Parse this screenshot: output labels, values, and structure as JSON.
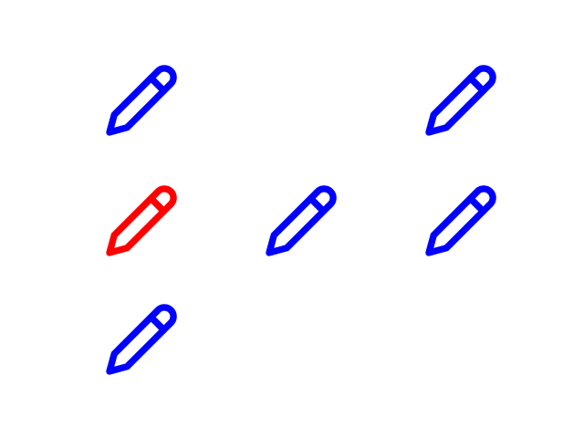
{
  "colors": {
    "default": "#0000ff",
    "highlight": "#ff0000",
    "background": "#ffffff"
  },
  "grid": {
    "rows": 3,
    "cols": 3
  },
  "icons": [
    {
      "icon": "pencil-icon",
      "row": 0,
      "col": 0,
      "color": "#0000ff",
      "state": "default"
    },
    {
      "icon": "pencil-icon",
      "row": 0,
      "col": 2,
      "color": "#0000ff",
      "state": "default"
    },
    {
      "icon": "pencil-icon",
      "row": 1,
      "col": 0,
      "color": "#ff0000",
      "state": "highlighted"
    },
    {
      "icon": "pencil-icon",
      "row": 1,
      "col": 1,
      "color": "#0000ff",
      "state": "default"
    },
    {
      "icon": "pencil-icon",
      "row": 1,
      "col": 2,
      "color": "#0000ff",
      "state": "default"
    },
    {
      "icon": "pencil-icon",
      "row": 2,
      "col": 0,
      "color": "#0000ff",
      "state": "default"
    }
  ]
}
